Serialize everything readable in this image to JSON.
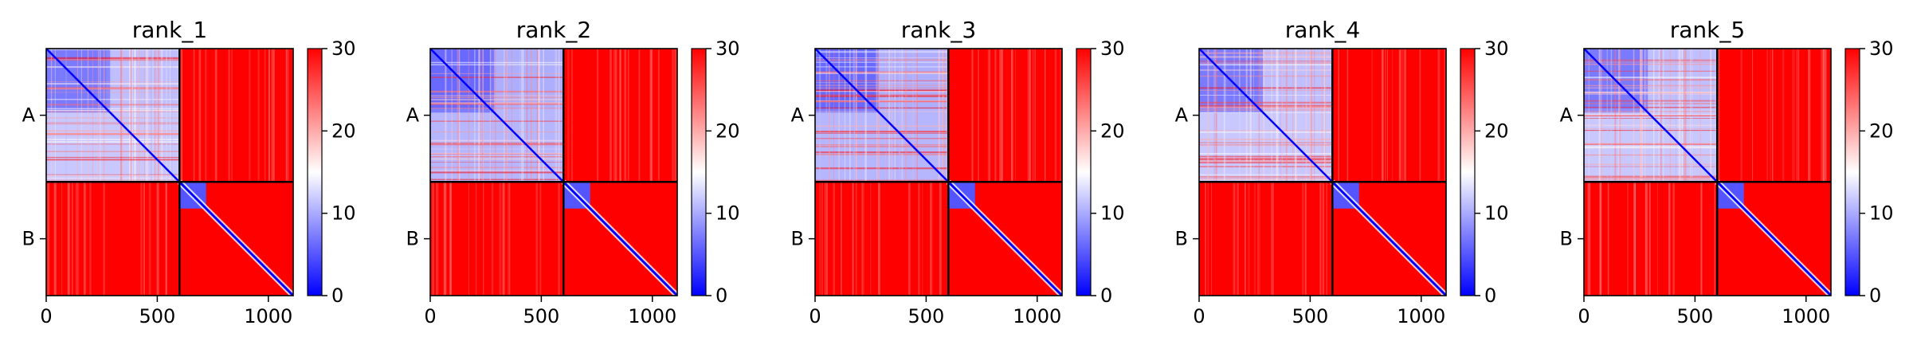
{
  "chart_data": [
    {
      "type": "heatmap",
      "title": "rank_1",
      "chains": [
        "A",
        "B"
      ],
      "x_ticks": [
        0,
        500,
        1000
      ],
      "xlim": [
        0,
        1112
      ],
      "chain_boundary": 600,
      "colorbar": {
        "vmin": 0,
        "vmax": 30,
        "ticks": [
          0,
          10,
          20,
          30
        ],
        "colors": [
          "#0000ff",
          "#ffffff",
          "#ff0000"
        ]
      },
      "pae_summary": {
        "A_intra": 9,
        "B_intra": 3,
        "B_domain_block": [
          600,
          720
        ],
        "inter_chain": 29
      }
    },
    {
      "type": "heatmap",
      "title": "rank_2",
      "chains": [
        "A",
        "B"
      ],
      "x_ticks": [
        0,
        500,
        1000
      ],
      "xlim": [
        0,
        1112
      ],
      "chain_boundary": 600,
      "colorbar": {
        "vmin": 0,
        "vmax": 30,
        "ticks": [
          0,
          10,
          20,
          30
        ],
        "colors": [
          "#0000ff",
          "#ffffff",
          "#ff0000"
        ]
      },
      "pae_summary": {
        "A_intra": 8,
        "B_intra": 3,
        "B_domain_block": [
          600,
          720
        ],
        "inter_chain": 29
      }
    },
    {
      "type": "heatmap",
      "title": "rank_3",
      "chains": [
        "A",
        "B"
      ],
      "x_ticks": [
        0,
        500,
        1000
      ],
      "xlim": [
        0,
        1112
      ],
      "chain_boundary": 600,
      "colorbar": {
        "vmin": 0,
        "vmax": 30,
        "ticks": [
          0,
          10,
          20,
          30
        ],
        "colors": [
          "#0000ff",
          "#ffffff",
          "#ff0000"
        ]
      },
      "pae_summary": {
        "A_intra": 8,
        "B_intra": 3,
        "B_domain_block": [
          600,
          720
        ],
        "inter_chain": 29
      }
    },
    {
      "type": "heatmap",
      "title": "rank_4",
      "chains": [
        "A",
        "B"
      ],
      "x_ticks": [
        0,
        500,
        1000
      ],
      "xlim": [
        0,
        1112
      ],
      "chain_boundary": 600,
      "colorbar": {
        "vmin": 0,
        "vmax": 30,
        "ticks": [
          0,
          10,
          20,
          30
        ],
        "colors": [
          "#0000ff",
          "#ffffff",
          "#ff0000"
        ]
      },
      "pae_summary": {
        "A_intra": 9,
        "B_intra": 3,
        "B_domain_block": [
          600,
          720
        ],
        "inter_chain": 29
      }
    },
    {
      "type": "heatmap",
      "title": "rank_5",
      "chains": [
        "A",
        "B"
      ],
      "x_ticks": [
        0,
        500,
        1000
      ],
      "xlim": [
        0,
        1112
      ],
      "chain_boundary": 600,
      "colorbar": {
        "vmin": 0,
        "vmax": 30,
        "ticks": [
          0,
          10,
          20,
          30
        ],
        "colors": [
          "#0000ff",
          "#ffffff",
          "#ff0000"
        ]
      },
      "pae_summary": {
        "A_intra": 9,
        "B_intra": 3,
        "B_domain_block": [
          600,
          720
        ],
        "inter_chain": 29
      }
    }
  ]
}
